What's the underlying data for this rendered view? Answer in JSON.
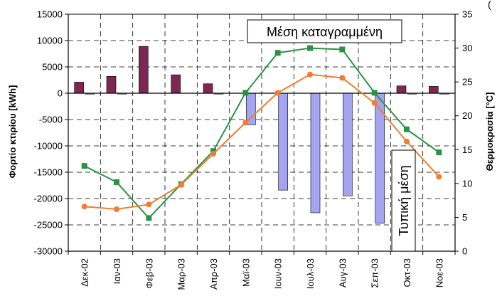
{
  "chart_data": {
    "type": "bar",
    "title": "",
    "categories": [
      "Δεκ-02",
      "Ιαν-03",
      "Φεβ-03",
      "Μαρ-03",
      "Απρ-03",
      "Μαϊ-03",
      "Ιουν-03",
      "Ιουλ-03",
      "Αυγ-03",
      "Σεπ-03",
      "Οκτ-03",
      "Νοε-03"
    ],
    "ylabel_left": "Φορτίο κτιρίου [kWh]",
    "ylabel_right": "Θερμοκρασία [°C]",
    "ylim_left": [
      -30000,
      15000
    ],
    "ylim_right": [
      0,
      35
    ],
    "yticks_left": [
      "15000",
      "10000",
      "5000",
      "0",
      "-5000",
      "-10000",
      "-15000",
      "-20000",
      "-25000",
      "-30000"
    ],
    "yticks_right": [
      "35",
      "30",
      "25",
      "20",
      "15",
      "10",
      "5",
      "0"
    ],
    "grid": true,
    "series": [
      {
        "axis": "left",
        "kind": "bar",
        "color": "#7f2655",
        "values": [
          2100,
          3200,
          8900,
          3500,
          1800,
          0,
          0,
          0,
          0,
          0,
          1400,
          1300
        ]
      },
      {
        "axis": "left",
        "kind": "bar",
        "color": "#a4a4f2",
        "values": [
          -150,
          -150,
          0,
          0,
          -150,
          -6000,
          -18400,
          -22700,
          -19500,
          -24700,
          -100,
          -150
        ]
      },
      {
        "axis": "right",
        "kind": "line",
        "color": "#2a9246",
        "values": [
          12.6,
          10.2,
          4.9,
          9.9,
          14.8,
          23.4,
          29.3,
          30.0,
          29.8,
          23.4,
          18.0,
          14.6
        ]
      },
      {
        "axis": "right",
        "kind": "line",
        "color": "#ee7d31",
        "values": [
          6.6,
          6.2,
          6.9,
          9.8,
          14.4,
          19.0,
          23.4,
          26.1,
          25.6,
          21.9,
          16.2,
          11.0
        ]
      }
    ],
    "annotations": [
      "Μέση καταγραμμένη",
      "Τυπική μέση"
    ],
    "corner_mark": "("
  }
}
